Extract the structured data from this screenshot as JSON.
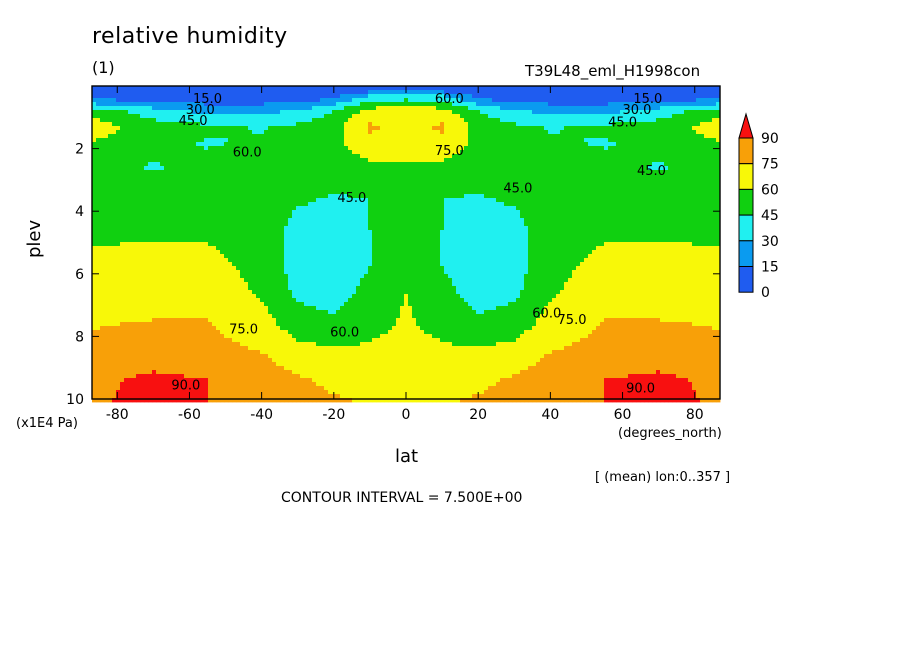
{
  "header": {
    "title": "relative humidity",
    "panel": "(1)",
    "run": "T39L48_eml_H1998con"
  },
  "footer": {
    "mean_info": "[ (mean) lon:0..357 ]",
    "contour_interval": "CONTOUR INTERVAL = 7.500E+00"
  },
  "chart_data": {
    "type": "heatmap",
    "title": "relative humidity",
    "xlabel": "lat",
    "x_units": "(degrees_north)",
    "ylabel": "plev",
    "y_units": "(x1E4 Pa)",
    "xlim": [
      -87,
      87
    ],
    "ylim": [
      10,
      0
    ],
    "x_ticks": [
      -80,
      -60,
      -40,
      -20,
      0,
      20,
      40,
      60,
      80
    ],
    "y_ticks": [
      2,
      4,
      6,
      8,
      10
    ],
    "legend": {
      "position": "right",
      "levels": [
        0,
        15,
        30,
        45,
        60,
        75,
        90
      ],
      "colors": [
        "#1f5cf0",
        "#0a9bf0",
        "#20f0f0",
        "#10d010",
        "#f8f808",
        "#f8a008",
        "#f81010"
      ],
      "labels": [
        "0",
        "15",
        "30",
        "45",
        "60",
        "75",
        "90"
      ]
    },
    "grid": {
      "lat": [
        -87,
        -70,
        -55,
        -40,
        -30,
        -20,
        -10,
        0,
        10,
        20,
        30,
        40,
        55,
        70,
        87
      ],
      "plev": [
        0.1,
        0.4,
        0.8,
        1.3,
        1.8,
        2.6,
        3.6,
        4.6,
        5.6,
        6.6,
        7.6,
        8.6,
        9.4,
        10.0
      ],
      "values": [
        [
          3,
          3,
          3,
          3,
          3,
          3,
          4,
          4,
          4,
          3,
          3,
          3,
          3,
          3,
          3
        ],
        [
          12,
          8,
          6,
          6,
          7,
          15,
          40,
          42,
          40,
          15,
          7,
          6,
          6,
          8,
          12
        ],
        [
          55,
          36,
          26,
          26,
          32,
          45,
          66,
          68,
          66,
          45,
          32,
          26,
          26,
          36,
          55
        ],
        [
          68,
          52,
          48,
          44,
          48,
          55,
          77,
          70,
          77,
          55,
          48,
          44,
          48,
          52,
          68
        ],
        [
          60,
          48,
          44,
          46,
          50,
          56,
          72,
          66,
          72,
          56,
          50,
          46,
          44,
          48,
          60
        ],
        [
          50,
          44,
          48,
          55,
          56,
          50,
          55,
          58,
          55,
          50,
          56,
          55,
          48,
          44,
          50
        ],
        [
          52,
          52,
          55,
          52,
          47,
          44,
          45,
          47,
          45,
          44,
          47,
          52,
          55,
          52,
          52
        ],
        [
          58,
          58,
          58,
          53,
          40,
          35,
          45,
          55,
          45,
          35,
          40,
          53,
          58,
          58,
          58
        ],
        [
          62,
          63,
          63,
          56,
          38,
          33,
          44,
          58,
          44,
          33,
          38,
          56,
          63,
          63,
          62
        ],
        [
          66,
          68,
          68,
          58,
          42,
          38,
          50,
          60,
          50,
          38,
          42,
          58,
          68,
          68,
          66
        ],
        [
          74,
          76,
          76,
          66,
          52,
          48,
          55,
          62,
          55,
          48,
          52,
          66,
          76,
          76,
          74
        ],
        [
          80,
          82,
          80,
          76,
          67,
          64,
          64,
          66,
          64,
          64,
          67,
          76,
          80,
          82,
          80
        ],
        [
          86,
          94,
          90,
          83,
          77,
          72,
          70,
          70,
          70,
          72,
          77,
          83,
          90,
          94,
          86
        ],
        [
          88,
          94,
          90,
          84,
          80,
          76,
          74,
          74,
          74,
          76,
          80,
          84,
          90,
          94,
          88
        ]
      ]
    },
    "contour_labels": [
      {
        "text": "15.0",
        "lat": -55,
        "plev": 0.55
      },
      {
        "text": "30.0",
        "lat": -57,
        "plev": 0.9
      },
      {
        "text": "45.0",
        "lat": -59,
        "plev": 1.25
      },
      {
        "text": "60.0",
        "lat": 12,
        "plev": 0.55
      },
      {
        "text": "75.0",
        "lat": 12,
        "plev": 2.2
      },
      {
        "text": "45.0",
        "lat": 68,
        "plev": 2.85
      },
      {
        "text": "45.0",
        "lat": 60,
        "plev": 1.3
      },
      {
        "text": "30.0",
        "lat": 64,
        "plev": 0.9
      },
      {
        "text": "15.0",
        "lat": 67,
        "plev": 0.55
      },
      {
        "text": "60.0",
        "lat": -44,
        "plev": 2.25
      },
      {
        "text": "45.0",
        "lat": -15,
        "plev": 3.7
      },
      {
        "text": "45.0",
        "lat": 31,
        "plev": 3.4
      },
      {
        "text": "60.0",
        "lat": 39,
        "plev": 7.4
      },
      {
        "text": "75.0",
        "lat": 46,
        "plev": 7.6
      },
      {
        "text": "75.0",
        "lat": -45,
        "plev": 7.9
      },
      {
        "text": "60.0",
        "lat": -17,
        "plev": 8.0
      },
      {
        "text": "90.0",
        "lat": -61,
        "plev": 9.7
      },
      {
        "text": "90.0",
        "lat": 65,
        "plev": 9.8
      }
    ]
  }
}
